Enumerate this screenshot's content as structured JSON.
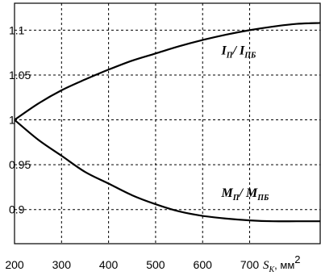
{
  "chart_data": {
    "type": "line",
    "title": "",
    "xlabel": {
      "symbol": "S",
      "subscript": "K",
      "unit": ", мм",
      "unit_sup": "2"
    },
    "ylabel": "",
    "xlim": [
      200,
      850
    ],
    "ylim": [
      0.862,
      1.13
    ],
    "x_ticks": [
      200,
      300,
      400,
      500,
      600,
      700
    ],
    "x_tick_labels": [
      "200",
      "300",
      "400",
      "500",
      "600",
      "700"
    ],
    "y_ticks": [
      0.9,
      0.95,
      1.0,
      1.05,
      1.1
    ],
    "y_tick_labels": [
      "0.9",
      "0.95",
      "1",
      "1.05",
      "1.1"
    ],
    "grid": true,
    "series": [
      {
        "name": "I_П / I_ПБ",
        "label_main_1": "I",
        "label_sub_1": "П",
        "label_sep": "/ ",
        "label_main_2": "I",
        "label_sub_2": "ПБ",
        "label_at": [
          640,
          1.073
        ],
        "x": [
          200,
          250,
          300,
          350,
          400,
          450,
          500,
          550,
          600,
          650,
          700,
          750,
          800,
          850
        ],
        "values": [
          1.0,
          1.018,
          1.033,
          1.045,
          1.056,
          1.066,
          1.074,
          1.082,
          1.089,
          1.095,
          1.1,
          1.104,
          1.107,
          1.108
        ]
      },
      {
        "name": "M_П / M_ПБ",
        "label_main_1": "M",
        "label_sub_1": "П",
        "label_sep": "/ ",
        "label_main_2": "M",
        "label_sub_2": "ПБ",
        "label_at": [
          640,
          0.914
        ],
        "x": [
          200,
          250,
          300,
          350,
          400,
          450,
          500,
          550,
          600,
          650,
          700,
          750,
          800,
          850
        ],
        "values": [
          1.0,
          0.978,
          0.96,
          0.942,
          0.929,
          0.916,
          0.906,
          0.898,
          0.893,
          0.89,
          0.888,
          0.887,
          0.887,
          0.887
        ]
      }
    ]
  }
}
